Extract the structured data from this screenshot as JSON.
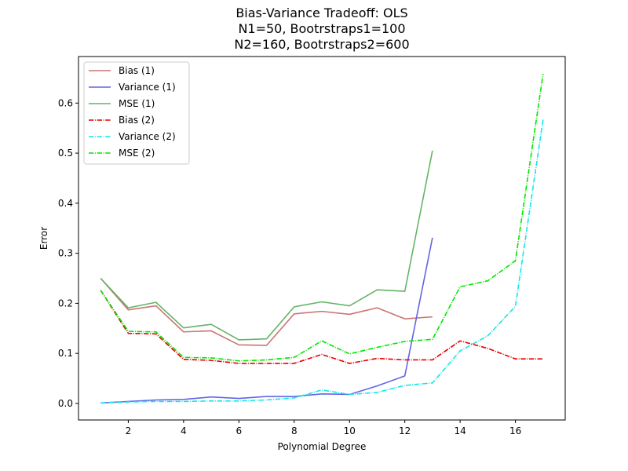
{
  "chart_data": {
    "type": "line",
    "title": [
      "Bias-Variance Tradeoff: OLS",
      "N1=50, Bootrstraps1=100",
      "N2=160, Bootrstraps2=600"
    ],
    "xlabel": "Polynomial Degree",
    "ylabel": "Error",
    "xlim": [
      0.2,
      17.8
    ],
    "ylim": [
      -0.033,
      0.693
    ],
    "xticks": [
      2,
      4,
      6,
      8,
      10,
      12,
      14,
      16
    ],
    "yticks": [
      0.0,
      0.1,
      0.2,
      0.3,
      0.4,
      0.5,
      0.6
    ],
    "grid": false,
    "legend_position": "top-left",
    "series": [
      {
        "name": "Bias (1)",
        "color": "#c97575",
        "dash": "solid",
        "x": [
          1,
          2,
          3,
          4,
          5,
          6,
          7,
          8,
          9,
          10,
          11,
          12,
          13
        ],
        "y": [
          0.25,
          0.187,
          0.195,
          0.143,
          0.145,
          0.117,
          0.116,
          0.179,
          0.184,
          0.178,
          0.191,
          0.169,
          0.173
        ]
      },
      {
        "name": "Variance (1)",
        "color": "#6464e6",
        "dash": "solid",
        "x": [
          1,
          2,
          3,
          4,
          5,
          6,
          7,
          8,
          9,
          10,
          11,
          12,
          13
        ],
        "y": [
          0.001,
          0.004,
          0.007,
          0.008,
          0.013,
          0.01,
          0.014,
          0.014,
          0.019,
          0.018,
          0.035,
          0.055,
          0.331
        ]
      },
      {
        "name": "MSE (1)",
        "color": "#64b464",
        "dash": "solid",
        "x": [
          1,
          2,
          3,
          4,
          5,
          6,
          7,
          8,
          9,
          10,
          11,
          12,
          13
        ],
        "y": [
          0.25,
          0.191,
          0.202,
          0.151,
          0.158,
          0.127,
          0.129,
          0.193,
          0.203,
          0.195,
          0.227,
          0.224,
          0.505
        ]
      },
      {
        "name": "Bias (2)",
        "color": "#e60000",
        "dash": "dashdot",
        "x": [
          1,
          2,
          3,
          4,
          5,
          6,
          7,
          8,
          9,
          10,
          11,
          12,
          13,
          14,
          15,
          16,
          17
        ],
        "y": [
          0.226,
          0.14,
          0.139,
          0.088,
          0.086,
          0.08,
          0.08,
          0.08,
          0.098,
          0.08,
          0.09,
          0.087,
          0.087,
          0.125,
          0.11,
          0.089,
          0.089
        ]
      },
      {
        "name": "Variance (2)",
        "color": "#14e6e6",
        "dash": "dashdot",
        "x": [
          1,
          2,
          3,
          4,
          5,
          6,
          7,
          8,
          9,
          10,
          11,
          12,
          13,
          14,
          15,
          16,
          17
        ],
        "y": [
          0.001,
          0.003,
          0.004,
          0.004,
          0.005,
          0.005,
          0.007,
          0.011,
          0.027,
          0.018,
          0.022,
          0.036,
          0.041,
          0.105,
          0.135,
          0.194,
          0.567
        ]
      },
      {
        "name": "MSE (2)",
        "color": "#00e600",
        "dash": "dashdot",
        "x": [
          1,
          2,
          3,
          4,
          5,
          6,
          7,
          8,
          9,
          10,
          11,
          12,
          13,
          14,
          15,
          16,
          17
        ],
        "y": [
          0.226,
          0.144,
          0.143,
          0.092,
          0.091,
          0.085,
          0.087,
          0.092,
          0.125,
          0.099,
          0.112,
          0.124,
          0.128,
          0.233,
          0.245,
          0.285,
          0.658
        ]
      }
    ]
  }
}
